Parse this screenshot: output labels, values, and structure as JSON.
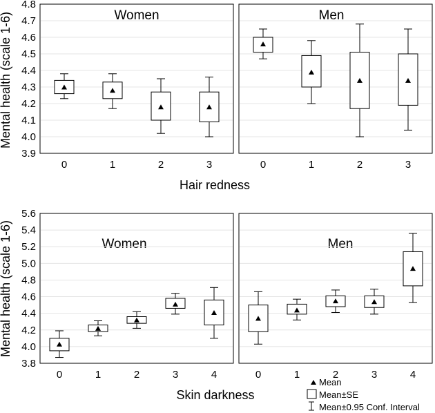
{
  "chart_data": [
    {
      "type": "box",
      "ylabel": "Mental health (scale 1-6)",
      "xlabel": "Hair redness",
      "ylim": [
        3.9,
        4.8
      ],
      "yticks": [
        "3.9",
        "4.0",
        "4.1",
        "4.2",
        "4.3",
        "4.4",
        "4.5",
        "4.6",
        "4.7",
        "4.8"
      ],
      "grid": true,
      "panels": [
        {
          "title": "Women",
          "categories": [
            "0",
            "1",
            "2",
            "3"
          ],
          "mean": [
            4.3,
            4.28,
            4.18,
            4.18
          ],
          "se_low": [
            4.26,
            4.23,
            4.1,
            4.09
          ],
          "se_high": [
            4.34,
            4.33,
            4.27,
            4.27
          ],
          "ci_low": [
            4.23,
            4.17,
            4.02,
            4.0
          ],
          "ci_high": [
            4.38,
            4.38,
            4.35,
            4.36
          ]
        },
        {
          "title": "Men",
          "categories": [
            "0",
            "1",
            "2",
            "3"
          ],
          "mean": [
            4.56,
            4.39,
            4.34,
            4.34
          ],
          "se_low": [
            4.51,
            4.3,
            4.17,
            4.19
          ],
          "se_high": [
            4.6,
            4.49,
            4.51,
            4.5
          ],
          "ci_low": [
            4.47,
            4.2,
            4.0,
            4.04
          ],
          "ci_high": [
            4.65,
            4.58,
            4.68,
            4.65
          ]
        }
      ]
    },
    {
      "type": "box",
      "ylabel": "Mental health (scale 1-6)",
      "xlabel": "Skin darkness",
      "ylim": [
        3.8,
        5.6
      ],
      "yticks": [
        "3.8",
        "4.0",
        "4.2",
        "4.4",
        "4.6",
        "4.8",
        "5.0",
        "5.2",
        "5.4",
        "5.6"
      ],
      "grid": true,
      "panels": [
        {
          "title": "Women",
          "categories": [
            "0",
            "1",
            "2",
            "3",
            "4"
          ],
          "mean": [
            4.03,
            4.22,
            4.32,
            4.51,
            4.41
          ],
          "se_low": [
            3.95,
            4.18,
            4.28,
            4.46,
            4.26
          ],
          "se_high": [
            4.1,
            4.26,
            4.36,
            4.58,
            4.56
          ],
          "ci_low": [
            3.87,
            4.13,
            4.22,
            4.39,
            4.1
          ],
          "ci_high": [
            4.19,
            4.31,
            4.42,
            4.64,
            4.71
          ]
        },
        {
          "title": "Men",
          "categories": [
            "0",
            "1",
            "2",
            "3",
            "4"
          ],
          "mean": [
            4.34,
            4.44,
            4.55,
            4.54,
            4.94
          ],
          "se_low": [
            4.18,
            4.39,
            4.48,
            4.47,
            4.73
          ],
          "se_high": [
            4.5,
            4.51,
            4.61,
            4.61,
            5.14
          ],
          "ci_low": [
            4.03,
            4.32,
            4.41,
            4.39,
            4.53
          ],
          "ci_high": [
            4.66,
            4.57,
            4.68,
            4.69,
            5.36
          ]
        }
      ]
    }
  ],
  "legend": {
    "placement": "bottom-right",
    "items": [
      "Mean",
      "Mean±SE",
      "Mean±0.95 Conf. Interval"
    ]
  }
}
